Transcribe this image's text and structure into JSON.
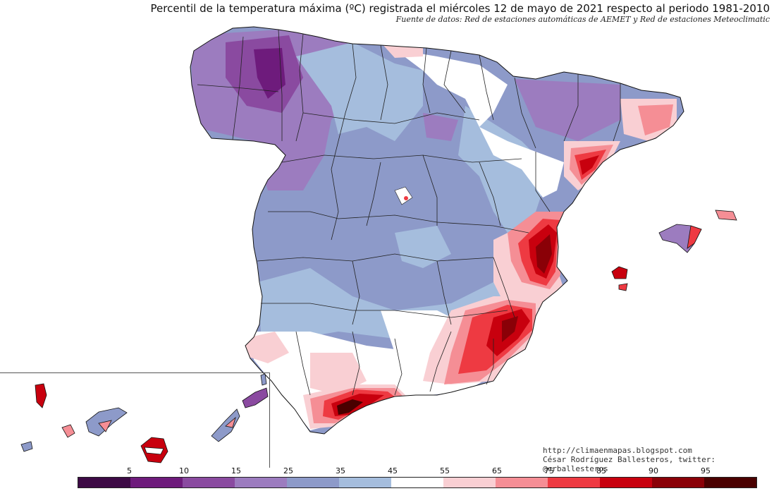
{
  "title": "Percentil de la temperatura máxima (ºC) registrada el miércoles 12 de mayo de 2021 respecto al periodo 1981-2010",
  "source": "Fuente de datos: Red de estaciones automáticas de AEMET y Red de estaciones Meteoclimatic",
  "credits": {
    "url": "http://climaenmapas.blogspot.com",
    "author": "César Rodríguez Ballesteros, twitter: @crballesteros"
  },
  "legend": {
    "ticks": [
      "5",
      "10",
      "15",
      "25",
      "35",
      "45",
      "55",
      "65",
      "75",
      "85",
      "90",
      "95"
    ],
    "colors": [
      "#3d0a45",
      "#6e1b7c",
      "#8a4aa0",
      "#9c7cbf",
      "#8d9ac9",
      "#a5bddd",
      "#ffffff",
      "#f9cfd3",
      "#f58e95",
      "#ee3a42",
      "#c8000e",
      "#8a0007",
      "#4a0000"
    ]
  }
}
